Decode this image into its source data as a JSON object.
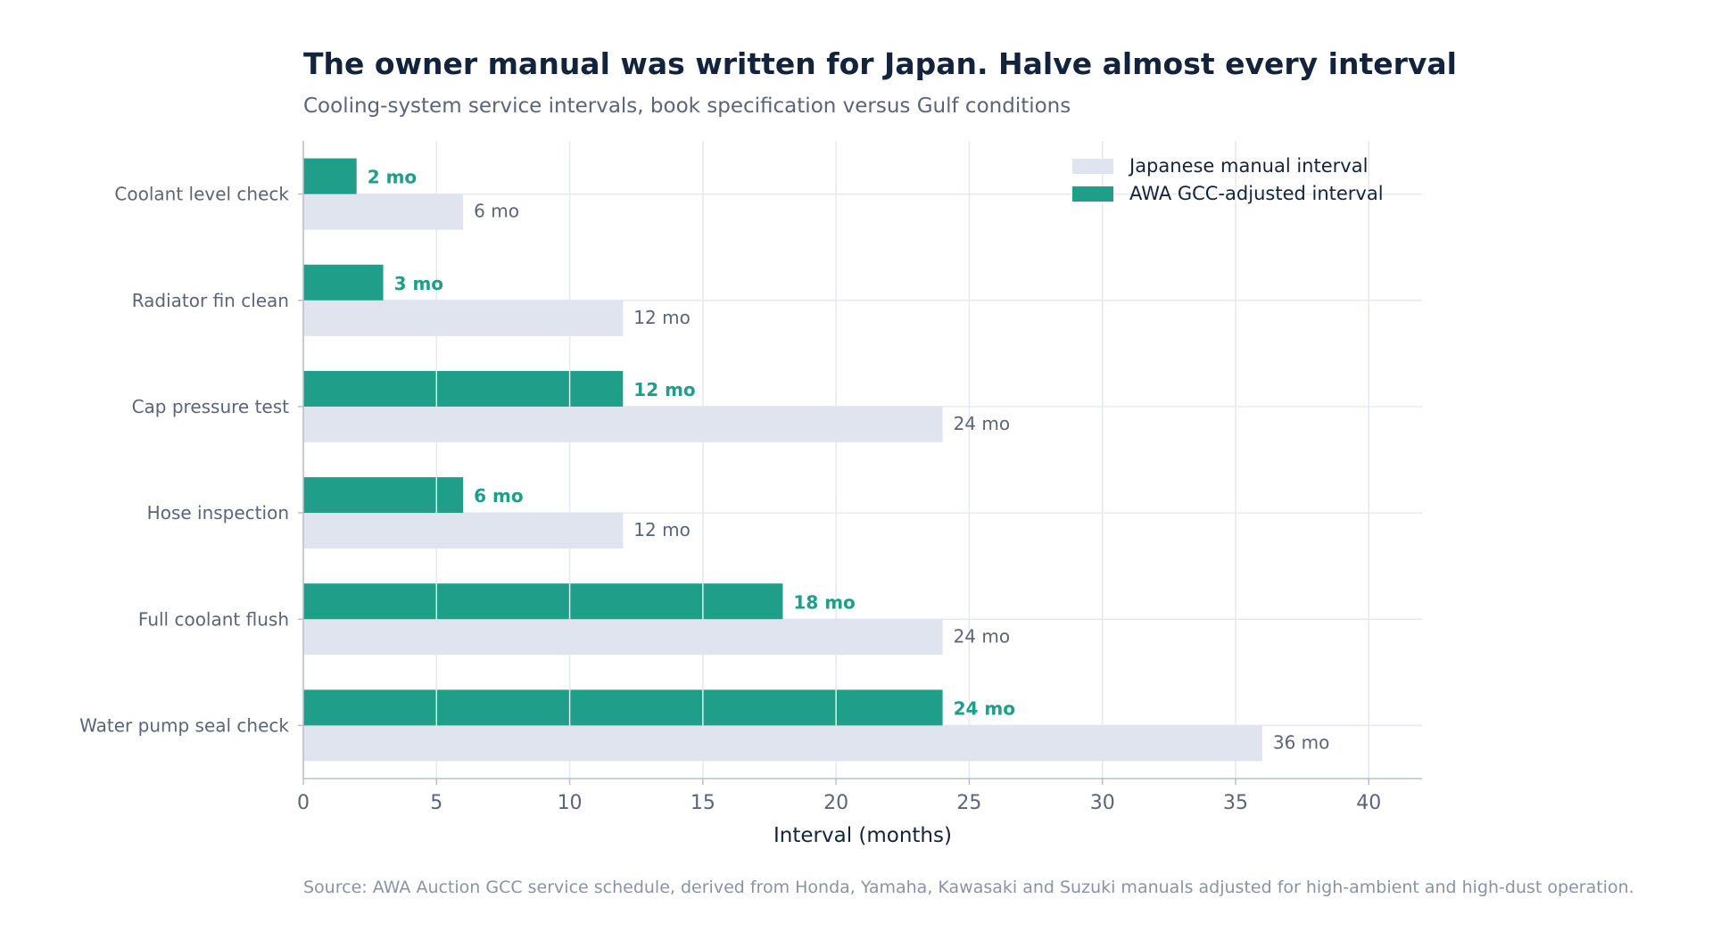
{
  "title": "The owner manual was written for Japan. Halve almost every interval",
  "subtitle": "Cooling-system service intervals, book specification versus Gulf conditions",
  "source": "Source: AWA Auction GCC service schedule, derived from Honda, Yamaha, Kawasaki and Suzuki manuals adjusted for high-ambient and high-dust operation.",
  "chart_data": {
    "type": "bar",
    "orientation": "horizontal",
    "categories": [
      "Coolant level check",
      "Radiator fin clean",
      "Cap pressure test",
      "Hose inspection",
      "Full coolant flush",
      "Water pump seal check"
    ],
    "series": [
      {
        "name": "Japanese manual interval",
        "values": [
          6,
          12,
          24,
          12,
          24,
          36
        ],
        "labels": [
          "6 mo",
          "12 mo",
          "24 mo",
          "12 mo",
          "24 mo",
          "36 mo"
        ],
        "color": "#dfe4ee",
        "label_color": "#5b6478"
      },
      {
        "name": "AWA GCC-adjusted interval",
        "values": [
          2,
          3,
          12,
          6,
          18,
          24
        ],
        "labels": [
          "2 mo",
          "3 mo",
          "12 mo",
          "6 mo",
          "18 mo",
          "24 mo"
        ],
        "color": "#1f9e8a",
        "label_color": "#1f9e8a"
      }
    ],
    "xlabel": "Interval (months)",
    "xlim": [
      0,
      42
    ],
    "xticks": [
      "0",
      "5",
      "10",
      "15",
      "20",
      "25",
      "30",
      "35",
      "40"
    ],
    "grid": true,
    "legend_position": "top-right"
  }
}
